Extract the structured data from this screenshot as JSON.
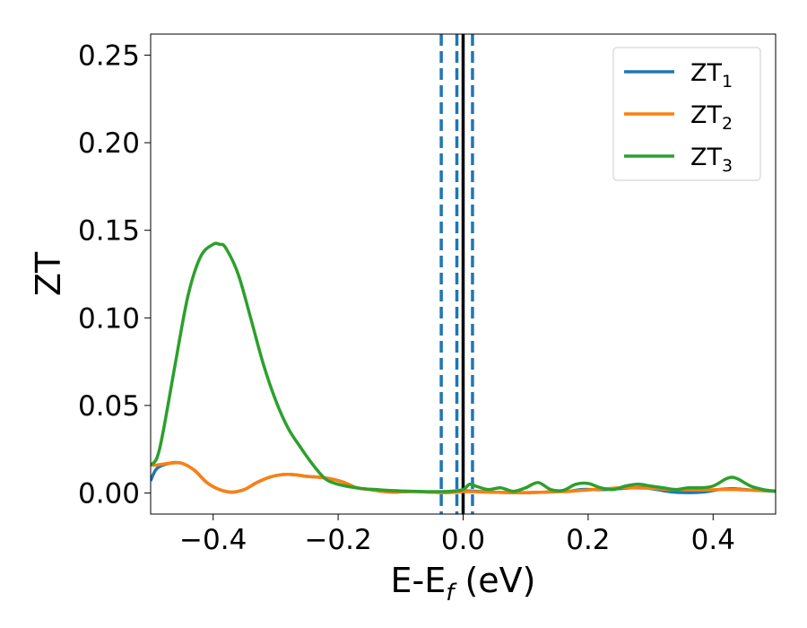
{
  "chart_data": {
    "type": "line",
    "xlabel": "E-E",
    "xlabel_sub": "f",
    "xlabel_unit": " (eV)",
    "ylabel": "ZT",
    "xlim": [
      -0.5,
      0.5
    ],
    "ylim": [
      -0.012,
      0.262
    ],
    "xticks": [
      -0.4,
      -0.2,
      0.0,
      0.2,
      0.4
    ],
    "xtick_labels": [
      "−0.4",
      "−0.2",
      "0.0",
      "0.2",
      "0.4"
    ],
    "yticks": [
      0.0,
      0.05,
      0.1,
      0.15,
      0.2,
      0.25
    ],
    "ytick_labels": [
      "0.00",
      "0.05",
      "0.10",
      "0.15",
      "0.20",
      "0.25"
    ],
    "legend_position": "top-right",
    "grid": false,
    "vlines": [
      {
        "x": -0.035,
        "style": "dashed",
        "color": "#1f77b4"
      },
      {
        "x": -0.01,
        "style": "dashed",
        "color": "#1f77b4"
      },
      {
        "x": 0.0,
        "style": "solid",
        "color": "#000000"
      },
      {
        "x": 0.015,
        "style": "dashed",
        "color": "#1f77b4"
      }
    ],
    "series": [
      {
        "name": "ZT",
        "name_sub": "1",
        "color": "#1f77b4",
        "x": [
          -0.5,
          -0.49,
          -0.47,
          -0.45,
          -0.43,
          -0.41,
          -0.39,
          -0.37,
          -0.35,
          -0.33,
          -0.31,
          -0.29,
          -0.27,
          -0.25,
          -0.23,
          -0.21,
          -0.19,
          -0.17,
          -0.15,
          -0.13,
          -0.11,
          -0.09,
          -0.07,
          -0.05,
          -0.03,
          -0.01,
          0.0,
          0.01,
          0.03,
          0.05,
          0.07,
          0.09,
          0.11,
          0.13,
          0.15,
          0.17,
          0.19,
          0.21,
          0.23,
          0.25,
          0.27,
          0.29,
          0.31,
          0.33,
          0.35,
          0.37,
          0.39,
          0.41,
          0.43,
          0.45,
          0.47,
          0.5
        ],
        "y": [
          0.007,
          0.014,
          0.017,
          0.017,
          0.013,
          0.006,
          0.002,
          0.0005,
          0.002,
          0.006,
          0.009,
          0.0105,
          0.0105,
          0.0095,
          0.009,
          0.008,
          0.006,
          0.003,
          0.002,
          0.001,
          0.0005,
          0.0008,
          0.0008,
          0.0005,
          0.0003,
          0.0005,
          0.001,
          0.0012,
          0.0008,
          0.0005,
          0.0003,
          0.0002,
          0.0003,
          0.0005,
          0.0008,
          0.001,
          0.002,
          0.002,
          0.002,
          0.0025,
          0.003,
          0.003,
          0.002,
          0.0008,
          0.0003,
          0.0003,
          0.0008,
          0.002,
          0.0025,
          0.002,
          0.0015,
          0.001
        ]
      },
      {
        "name": "ZT",
        "name_sub": "2",
        "color": "#ff7f0e",
        "x": [
          -0.5,
          -0.49,
          -0.47,
          -0.45,
          -0.43,
          -0.41,
          -0.39,
          -0.37,
          -0.35,
          -0.33,
          -0.31,
          -0.29,
          -0.27,
          -0.25,
          -0.23,
          -0.21,
          -0.19,
          -0.17,
          -0.15,
          -0.13,
          -0.11,
          -0.09,
          -0.07,
          -0.05,
          -0.03,
          -0.01,
          0.0,
          0.01,
          0.03,
          0.05,
          0.07,
          0.09,
          0.11,
          0.13,
          0.15,
          0.17,
          0.19,
          0.21,
          0.23,
          0.25,
          0.27,
          0.29,
          0.31,
          0.33,
          0.35,
          0.37,
          0.39,
          0.41,
          0.43,
          0.45,
          0.47,
          0.5
        ],
        "y": [
          0.016,
          0.016,
          0.017,
          0.017,
          0.013,
          0.006,
          0.002,
          0.0005,
          0.002,
          0.006,
          0.009,
          0.0105,
          0.0105,
          0.0095,
          0.009,
          0.008,
          0.006,
          0.003,
          0.002,
          0.001,
          0.0005,
          0.0008,
          0.0008,
          0.0005,
          0.0003,
          0.0005,
          0.0008,
          0.0008,
          0.0006,
          0.0004,
          0.0003,
          0.0002,
          0.0003,
          0.0005,
          0.0008,
          0.001,
          0.0015,
          0.002,
          0.0025,
          0.003,
          0.003,
          0.0028,
          0.0025,
          0.002,
          0.002,
          0.0018,
          0.0018,
          0.002,
          0.002,
          0.0018,
          0.0015,
          0.0012
        ]
      },
      {
        "name": "ZT",
        "name_sub": "3",
        "color": "#2ca02c",
        "x": [
          -0.5,
          -0.49,
          -0.48,
          -0.46,
          -0.44,
          -0.42,
          -0.4,
          -0.39,
          -0.38,
          -0.36,
          -0.34,
          -0.32,
          -0.3,
          -0.28,
          -0.26,
          -0.24,
          -0.22,
          -0.2,
          -0.18,
          -0.16,
          -0.14,
          -0.12,
          -0.1,
          -0.08,
          -0.06,
          -0.04,
          -0.02,
          0.0,
          0.01,
          0.02,
          0.04,
          0.06,
          0.08,
          0.1,
          0.12,
          0.14,
          0.16,
          0.18,
          0.2,
          0.22,
          0.24,
          0.26,
          0.28,
          0.3,
          0.32,
          0.34,
          0.36,
          0.38,
          0.4,
          0.42,
          0.43,
          0.44,
          0.46,
          0.48,
          0.5
        ],
        "y": [
          0.016,
          0.02,
          0.035,
          0.075,
          0.113,
          0.135,
          0.142,
          0.142,
          0.14,
          0.125,
          0.1,
          0.074,
          0.053,
          0.037,
          0.026,
          0.016,
          0.008,
          0.005,
          0.0035,
          0.0025,
          0.002,
          0.0015,
          0.0012,
          0.001,
          0.0008,
          0.0008,
          0.001,
          0.002,
          0.005,
          0.004,
          0.002,
          0.003,
          0.001,
          0.003,
          0.006,
          0.002,
          0.0015,
          0.005,
          0.0055,
          0.003,
          0.002,
          0.004,
          0.005,
          0.004,
          0.003,
          0.002,
          0.003,
          0.003,
          0.004,
          0.008,
          0.009,
          0.008,
          0.004,
          0.002,
          0.001
        ]
      }
    ]
  }
}
